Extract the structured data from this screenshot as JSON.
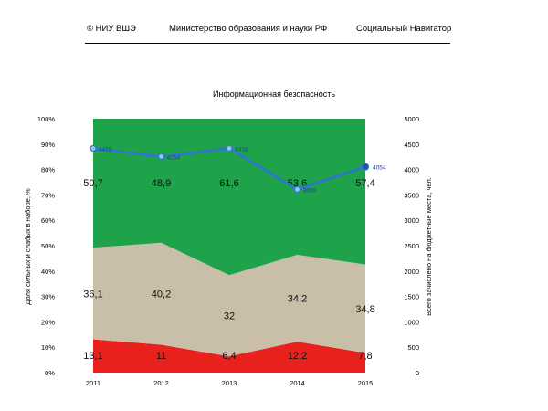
{
  "header": {
    "left": "© НИУ ВШЭ",
    "middle": "Министерство образования и науки РФ",
    "right": "Социальный Навигатор"
  },
  "colors": {
    "weak": "#e8211c",
    "middle": "#c9bfa8",
    "strong": "#1ea34a",
    "line": "#2e78c8",
    "marker": "#2e78c8",
    "line_label": "#1f3f8f"
  },
  "chart_data": {
    "type": "area",
    "title": "Информационная безопасность",
    "x": [
      "2011",
      "2012",
      "2013",
      "2014",
      "2015"
    ],
    "stacked_percent": true,
    "series": [
      {
        "values": [
          13.1,
          11,
          6.4,
          12.2,
          7.8
        ],
        "labels": [
          "13,1",
          "11",
          "6,4",
          "12,2",
          "7,8"
        ]
      },
      {
        "values": [
          36.1,
          40.2,
          32,
          34.2,
          34.8
        ],
        "labels": [
          "36,1",
          "40,2",
          "32",
          "34,2",
          "34,8"
        ]
      },
      {
        "values": [
          50.7,
          48.9,
          61.6,
          53.6,
          57.4
        ],
        "labels": [
          "50,7",
          "48,9",
          "61,6",
          "53,6",
          "57,4"
        ]
      }
    ],
    "line_series": {
      "axis": "right",
      "values": [
        4415,
        4254,
        4416,
        3608,
        4054
      ],
      "labels": [
        "4415",
        "4254",
        "4416",
        "3608",
        "4054"
      ]
    },
    "left_axis": {
      "label": "Доля сильных и слабых в наборе, %",
      "ylim": [
        0,
        100
      ],
      "ticks": [
        "0%",
        "10%",
        "20%",
        "30%",
        "40%",
        "50%",
        "60%",
        "70%",
        "80%",
        "90%",
        "100%"
      ]
    },
    "right_axis": {
      "label": "Всего зачислено на бюджетные места, чел.",
      "ylim": [
        0,
        5000
      ],
      "ticks": [
        "0",
        "500",
        "1000",
        "1500",
        "2000",
        "2500",
        "3000",
        "3500",
        "4000",
        "4500",
        "5000"
      ]
    }
  }
}
